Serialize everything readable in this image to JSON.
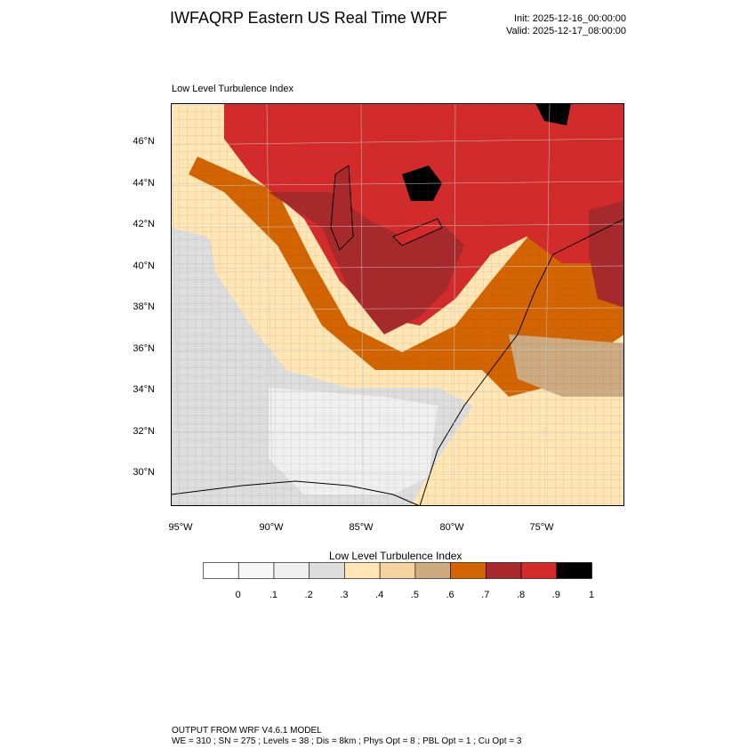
{
  "header": {
    "title": "IWFAQRP Eastern US Real Time WRF",
    "init": "Init: 2025-12-16_00:00:00",
    "valid": "Valid: 2025-12-17_08:00:00"
  },
  "map": {
    "subtitle": "Low Level Turbulence Index",
    "lat_labels": [
      "46°N",
      "44°N",
      "42°N",
      "40°N",
      "38°N",
      "36°N",
      "34°N",
      "32°N",
      "30°N"
    ],
    "lon_labels": [
      "95°W",
      "90°W",
      "85°W",
      "80°W",
      "75°W"
    ]
  },
  "colorbar": {
    "title": "Low Level Turbulence Index",
    "labels": [
      "0",
      ".1",
      ".2",
      ".3",
      ".4",
      ".5",
      ".6",
      ".7",
      ".8",
      ".9",
      "1"
    ],
    "colors": [
      "#ffffff",
      "#f7f7f7",
      "#efefef",
      "#dddddd",
      "#ffe6b4",
      "#f5d3a1",
      "#cdaa7f",
      "#d46400",
      "#a8292b",
      "#d42a2a",
      "#000000"
    ]
  },
  "footer": {
    "line1": "OUTPUT FROM WRF V4.6.1 MODEL",
    "line2": "WE = 310 ; SN = 275 ; Levels = 38 ; Dis = 8km ; Phys Opt = 8 ; PBL Opt = 1 ; Cu Opt = 3"
  }
}
